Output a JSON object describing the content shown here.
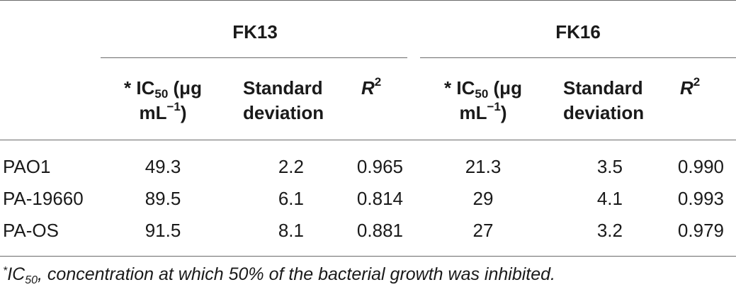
{
  "groups": {
    "fk13": "FK13",
    "fk16": "FK16"
  },
  "headers": {
    "ic50_prefix": "* IC",
    "ic50_sub": "50",
    "ic50_unit_1": " (μg",
    "ic50_unit_2_a": "mL",
    "ic50_unit_2_sup": "−1",
    "ic50_unit_2_b": ")",
    "sd_line1": "Standard",
    "sd_line2": "deviation",
    "r2_base": "R",
    "r2_sup": "2"
  },
  "rows": [
    {
      "strain": "PAO1",
      "fk13_ic50": "49.3",
      "fk13_sd": "2.2",
      "fk13_r2": "0.965",
      "fk16_ic50": "21.3",
      "fk16_sd": "3.5",
      "fk16_r2": "0.990"
    },
    {
      "strain": "PA-19660",
      "fk13_ic50": "89.5",
      "fk13_sd": "6.1",
      "fk13_r2": "0.814",
      "fk16_ic50": "29",
      "fk16_sd": "4.1",
      "fk16_r2": "0.993"
    },
    {
      "strain": "PA-OS",
      "fk13_ic50": "91.5",
      "fk13_sd": "8.1",
      "fk13_r2": "0.881",
      "fk16_ic50": "27",
      "fk16_sd": "3.2",
      "fk16_r2": "0.979"
    }
  ],
  "footnote": {
    "star": "*",
    "ic": "IC",
    "sub": "50",
    "text": ", concentration at which 50% of the bacterial growth was inhibited."
  }
}
